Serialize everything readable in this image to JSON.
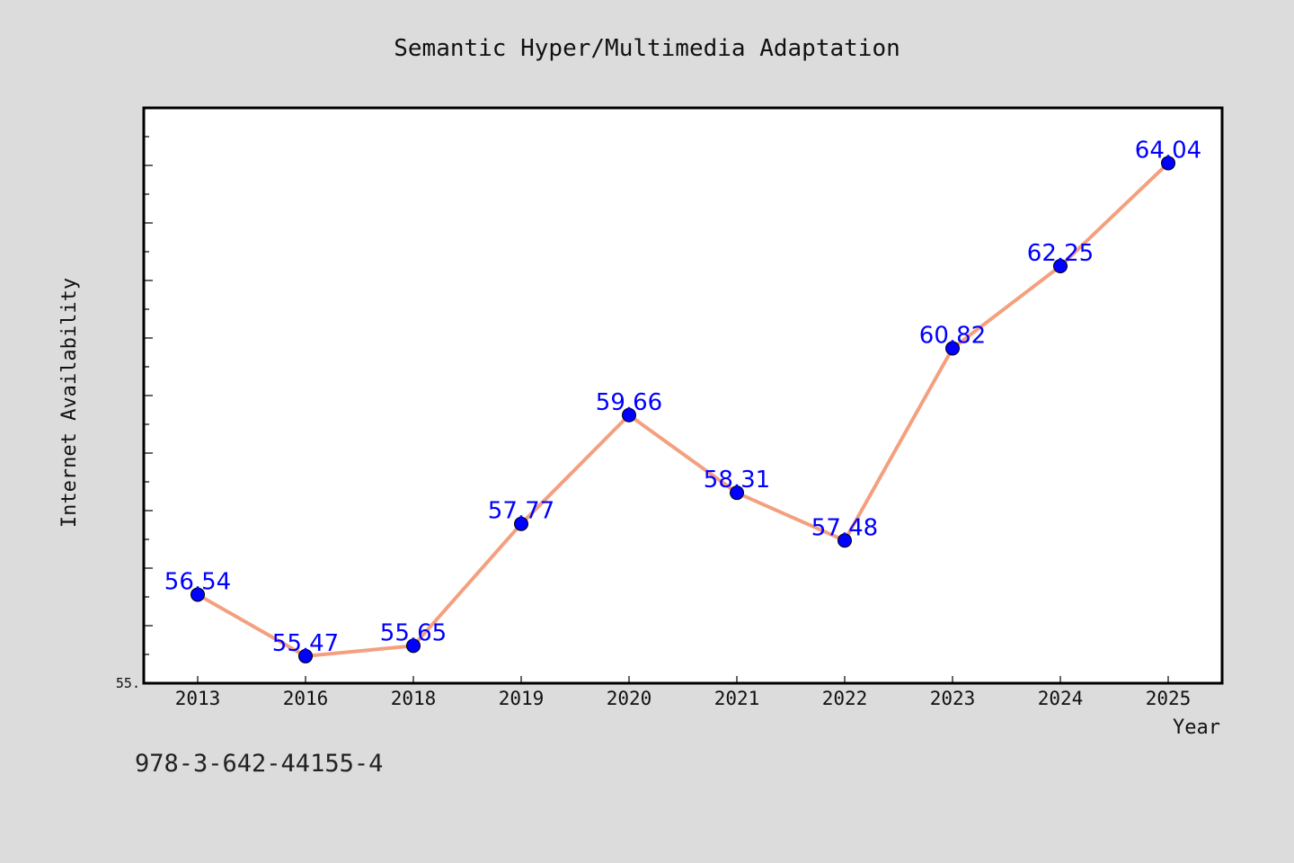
{
  "footnote": "978-3-642-44155-4",
  "chart_data": {
    "type": "line",
    "title": "Semantic Hyper/Multimedia Adaptation",
    "xlabel": "Year",
    "ylabel": "Internet Availability",
    "categories": [
      "2013",
      "2016",
      "2018",
      "2019",
      "2020",
      "2021",
      "2022",
      "2023",
      "2024",
      "2025"
    ],
    "series": [
      {
        "values": [
          56.54,
          55.47,
          55.65,
          57.77,
          59.66,
          58.31,
          57.48,
          60.82,
          62.25,
          64.04
        ],
        "data_labels": [
          "56.54",
          "55.47",
          "55.65",
          "57.77",
          "59.66",
          "58.31",
          "57.48",
          "60.82",
          "62.25",
          "64.04"
        ]
      }
    ],
    "ylim": [
      55.0,
      65.0
    ],
    "ytick_labels": [
      "55."
    ],
    "grid": false,
    "colors": {
      "line": "#f4a07f",
      "marker": "#0000ff",
      "data_label": "#0000ff",
      "plot_background": "#ffffff",
      "figure_background": "#dcdcdc",
      "axes": "#000000"
    }
  }
}
